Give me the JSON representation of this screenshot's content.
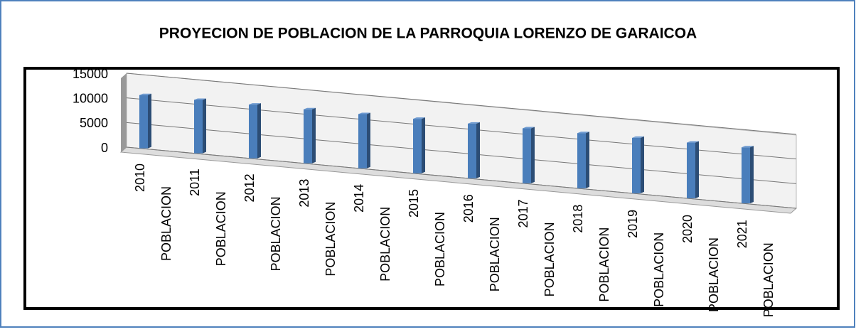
{
  "chart_data": {
    "type": "bar3d",
    "title": "PROYECION DE POBLACION DE LA PARROQUIA LORENZO DE GARAICOA",
    "categories": [
      "2010",
      "2011",
      "2012",
      "2013",
      "2014",
      "2015",
      "2016",
      "2017",
      "2018",
      "2019",
      "2020",
      "2021"
    ],
    "category_sublabels": [
      "POBLACION",
      "POBLACION",
      "POBLACION",
      "POBLACION",
      "POBLACION",
      "POBLACION",
      "POBLACION",
      "POBLACION",
      "POBLACION",
      "POBLACION",
      "POBLACION",
      "POBLACION"
    ],
    "values": [
      10800,
      10850,
      10900,
      10950,
      11000,
      11050,
      11100,
      11150,
      11200,
      11250,
      11300,
      11350
    ],
    "color": "#4a7ebb",
    "ylim": [
      0,
      15000
    ],
    "yticks": [
      0,
      5000,
      10000,
      15000
    ],
    "grid": true
  }
}
